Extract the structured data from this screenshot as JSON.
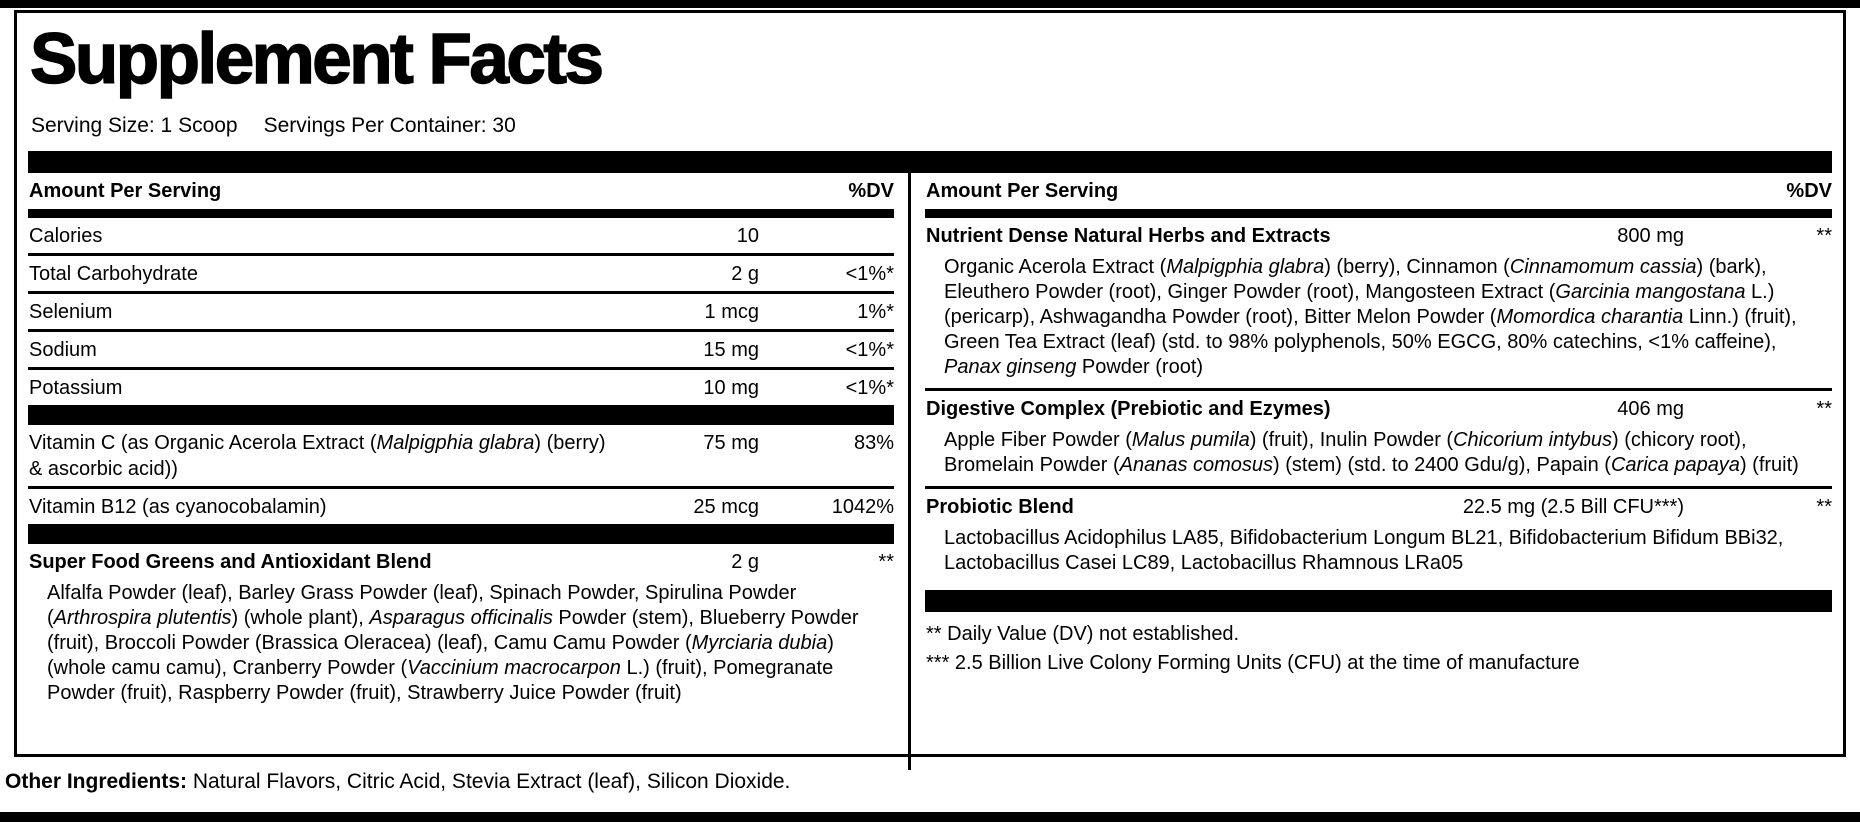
{
  "colors": {
    "ink": "#000000",
    "background": "#ffffff"
  },
  "title": "Supplement Facts",
  "serving": {
    "size": "Serving Size: 1 Scoop",
    "per_container": "Servings Per Container: 30"
  },
  "columns_header": {
    "amount": "Amount Per Serving",
    "dv": "%DV"
  },
  "left": {
    "rows": [
      {
        "name": "Calories",
        "amount": "10",
        "dv": ""
      },
      {
        "name": "Total Carbohydrate",
        "amount": "2 g",
        "dv": "<1%*"
      },
      {
        "name": "Selenium",
        "amount": "1 mcg",
        "dv": "1%*"
      },
      {
        "name": "Sodium",
        "amount": "15 mg",
        "dv": "<1%*"
      },
      {
        "name": "Potassium",
        "amount": "10 mg",
        "dv": "<1%*"
      },
      {
        "name": "Vitamin C (as Organic Acerola Extract (*Malpigphia glabra*) (berry) & ascorbic acid))",
        "amount": "75 mg",
        "dv": "83%"
      },
      {
        "name": "Vitamin B12 (as cyanocobalamin)",
        "amount": "25 mcg",
        "dv": "1042%"
      }
    ],
    "blend": {
      "name": "Super Food Greens and Antioxidant Blend",
      "amount": "2 g",
      "dv": "**",
      "ingredients": "Alfalfa Powder (leaf), Barley Grass Powder (leaf), Spinach Powder, Spirulina Powder (*Arthrospira plutentis*) (whole plant), *Asparagus officinalis* Powder (stem), Blueberry Powder (fruit), Broccoli Powder (Brassica Oleracea) (leaf), Camu Camu Powder (*Myrciaria dubia*) (whole camu camu), Cranberry Powder (*Vaccinium macrocarpon* L.) (fruit), Pomegranate Powder (fruit), Raspberry Powder (fruit), Strawberry Juice Powder (fruit)"
    }
  },
  "right": {
    "blends": [
      {
        "name": "Nutrient Dense Natural Herbs and Extracts",
        "amount": "800 mg",
        "dv": "**",
        "ingredients": "Organic Acerola Extract (*Malpigphia glabra*) (berry), Cinnamon (*Cinnamomum cassia*) (bark), Eleuthero Powder (root), Ginger Powder (root), Mangosteen Extract (*Garcinia mangostana* L.) (pericarp), Ashwagandha Powder (root), Bitter Melon Powder (*Momordica charantia* Linn.) (fruit), Green Tea Extract (leaf) (std. to 98% polyphenols, 50% EGCG, 80% catechins, <1% caffeine), *Panax ginseng* Powder (root)"
      },
      {
        "name": "Digestive Complex (Prebiotic and Ezymes)",
        "amount": "406 mg",
        "dv": "**",
        "ingredients": "Apple Fiber Powder (*Malus pumila*) (fruit), Inulin Powder (*Chicorium intybus*) (chicory root), Bromelain Powder (*Ananas comosus*) (stem) (std. to 2400 Gdu/g), Papain (*Carica papaya*) (fruit)"
      },
      {
        "name": "Probiotic Blend",
        "amount": "22.5 mg (2.5 Bill CFU***)",
        "dv": "**",
        "ingredients": "Lactobacillus Acidophilus LA85, Bifidobacterium Longum BL21, Bifidobacterium Bifidum BBi32, Lactobacillus Casei LC89, Lactobacillus Rhamnous LRa05"
      }
    ],
    "footnotes": [
      "** Daily Value (DV) not established.",
      "*** 2.5 Billion Live Colony Forming Units (CFU) at the time of manufacture"
    ]
  },
  "other_ingredients": {
    "label": "Other Ingredients:",
    "text": " Natural Flavors, Citric Acid, Stevia Extract (leaf), Silicon Dioxide."
  }
}
